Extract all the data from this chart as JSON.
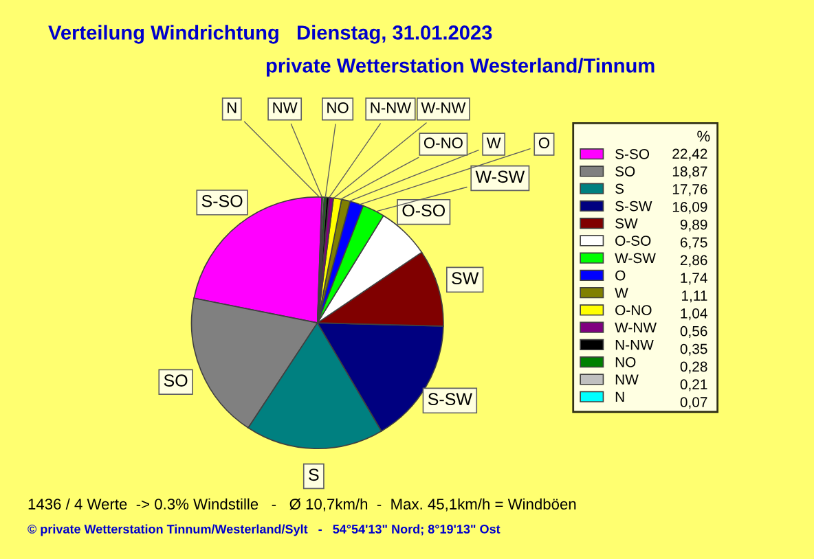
{
  "chart_data": {
    "type": "pie",
    "title": "Verteilung Windrichtung   Dienstag, 31.01.2023",
    "subtitle": "private Wetterstation Westerland/Tinnum",
    "legend_title": "%",
    "legend": "right",
    "categories": [
      "S-SO",
      "SO",
      "S",
      "S-SW",
      "SW",
      "O-SO",
      "W-SW",
      "O",
      "W",
      "O-NO",
      "W-NW",
      "N-NW",
      "NO",
      "NW",
      "N"
    ],
    "values": [
      22.42,
      18.87,
      17.76,
      16.09,
      9.89,
      6.75,
      2.86,
      1.74,
      1.11,
      1.04,
      0.56,
      0.35,
      0.28,
      0.21,
      0.07
    ],
    "value_labels": [
      "22,42",
      "18,87",
      "17,76",
      "16,09",
      "9,89",
      "6,75",
      "2,86",
      "1,74",
      "1,11",
      "1,04",
      "0,56",
      "0,35",
      "0,28",
      "0,21",
      "0,07"
    ],
    "colors": [
      "#ff00ff",
      "#808080",
      "#008080",
      "#000080",
      "#800000",
      "#ffffff",
      "#00ff00",
      "#0000ff",
      "#808000",
      "#ffff00",
      "#800080",
      "#000000",
      "#008000",
      "#c0c0c0",
      "#00ffff"
    ],
    "annotations": [
      "1436 / 4 Werte  -> 0.3% Windstille   -   Ø 10,7km/h  -  Max. 45,1km/h = Windböen",
      "© private Wetterstation Tinnum/Westerland/Sylt   -   54°54'13\" Nord; 8°19'13\" Ost"
    ]
  }
}
